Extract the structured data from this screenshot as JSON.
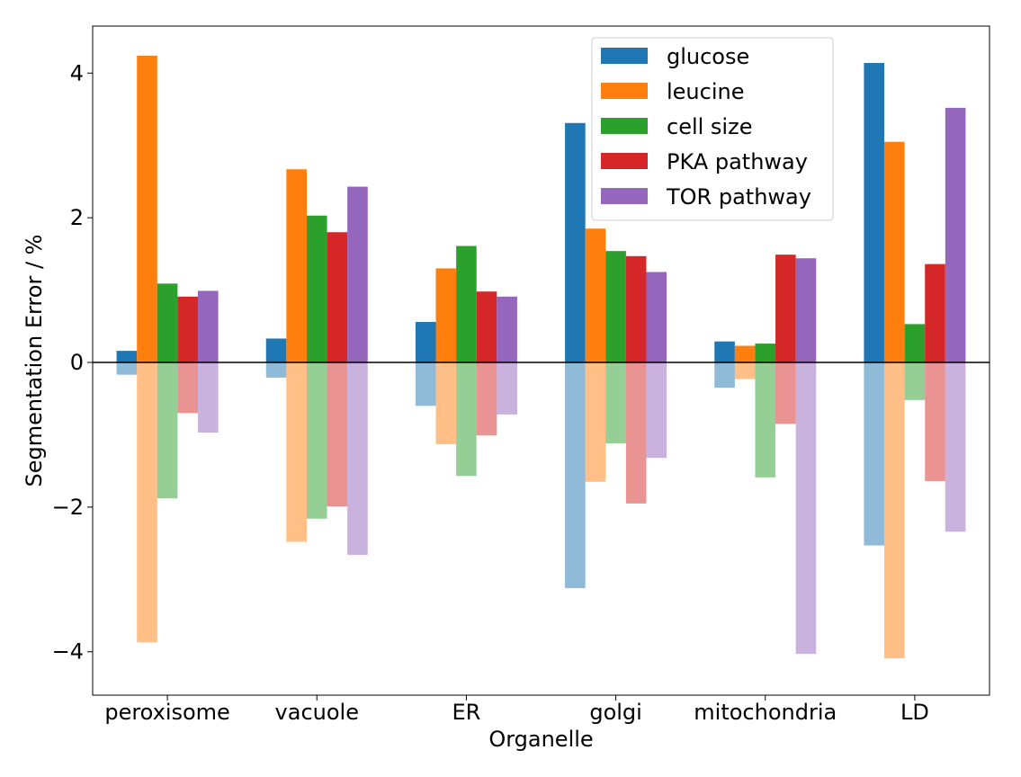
{
  "chart_data": {
    "type": "bar",
    "xlabel": "Organelle",
    "ylabel": "Segmentation Error / %",
    "ylim": [
      -4.6,
      4.65
    ],
    "yticks": [
      {
        "value": 4,
        "label": "4"
      },
      {
        "value": 2,
        "label": "2"
      },
      {
        "value": 0,
        "label": "0"
      },
      {
        "value": -2,
        "label": "−2"
      },
      {
        "value": -4,
        "label": "−4"
      }
    ],
    "categories": [
      "peroxisome",
      "vacuole",
      "ER",
      "golgi",
      "mitochondria",
      "LD"
    ],
    "series": [
      {
        "name": "glucose",
        "color": "#1f77b4",
        "positive": [
          0.16,
          0.33,
          0.56,
          3.31,
          0.29,
          4.14
        ],
        "negative": [
          -0.17,
          -0.21,
          -0.6,
          -3.12,
          -0.35,
          -2.53
        ]
      },
      {
        "name": "leucine",
        "color": "#ff7f0e",
        "positive": [
          4.24,
          2.67,
          1.3,
          1.85,
          0.23,
          3.05
        ],
        "negative": [
          -3.87,
          -2.48,
          -1.13,
          -1.65,
          -0.23,
          -4.09
        ]
      },
      {
        "name": "cell size",
        "color": "#2ca02c",
        "positive": [
          1.09,
          2.03,
          1.61,
          1.54,
          0.26,
          0.53
        ],
        "negative": [
          -1.88,
          -2.16,
          -1.57,
          -1.12,
          -1.59,
          -0.52
        ]
      },
      {
        "name": "PKA pathway",
        "color": "#d62728",
        "positive": [
          0.91,
          1.8,
          0.98,
          1.47,
          1.49,
          1.36
        ],
        "negative": [
          -0.7,
          -1.99,
          -1.01,
          -1.95,
          -0.85,
          -1.64
        ]
      },
      {
        "name": "TOR pathway",
        "color": "#9467bd",
        "positive": [
          0.99,
          2.43,
          0.91,
          1.25,
          1.44,
          3.52
        ],
        "negative": [
          -0.97,
          -2.66,
          -0.72,
          -1.32,
          -4.03,
          -2.34
        ]
      }
    ],
    "legend_position": "top-right",
    "grid": false,
    "zero_line": true
  }
}
